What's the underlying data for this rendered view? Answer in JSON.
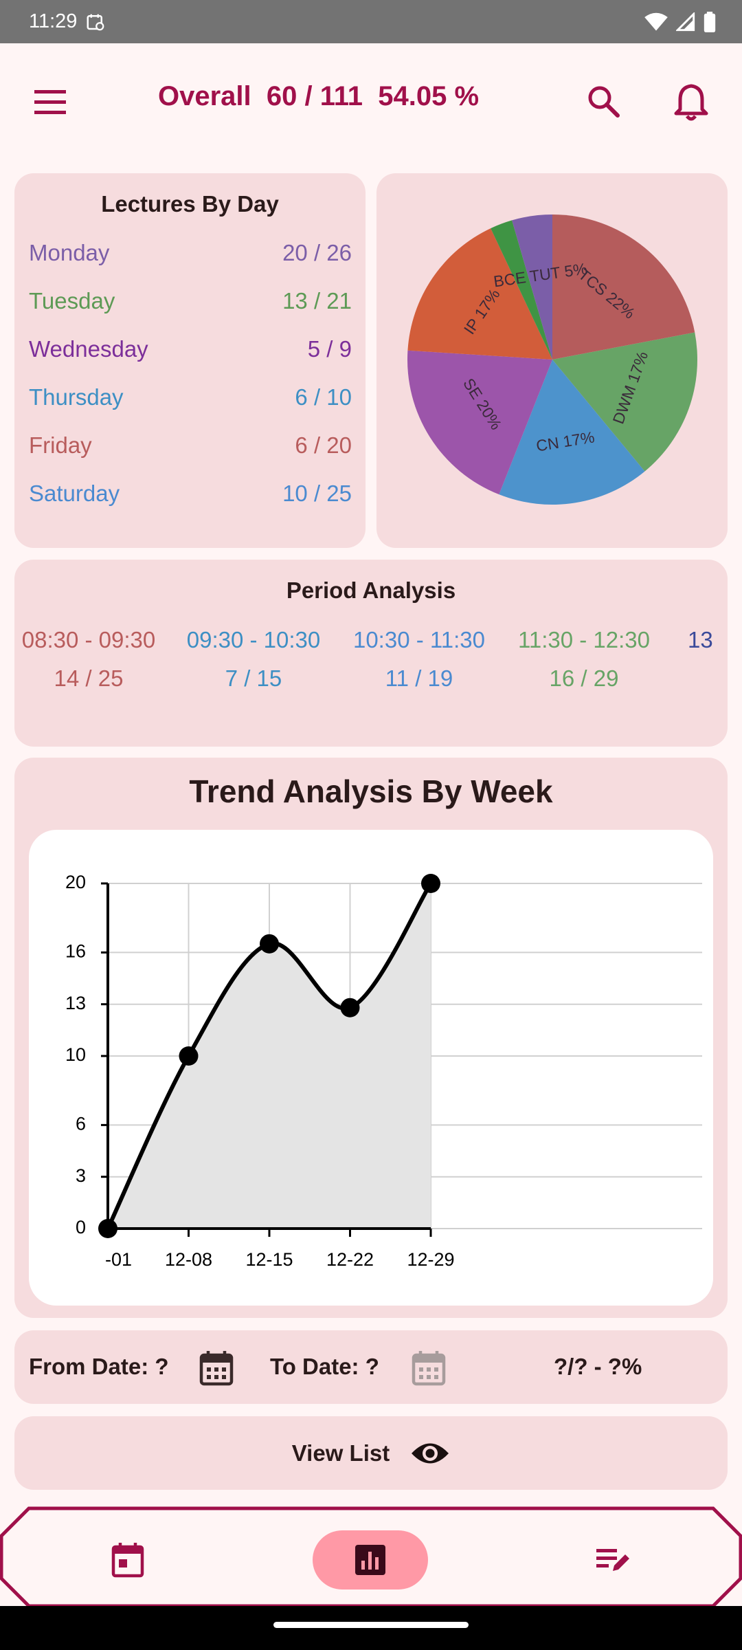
{
  "status_bar": {
    "time": "11:29"
  },
  "header": {
    "title": "Overall  60 / 111  54.05 %"
  },
  "lectures_by_day": {
    "title": "Lectures By Day",
    "days": [
      {
        "name": "Monday",
        "count": "20 / 26",
        "color": "#7b5ea8"
      },
      {
        "name": "Tuesday",
        "count": "13 / 21",
        "color": "#5d9a55"
      },
      {
        "name": "Wednesday",
        "count": "5 / 9",
        "color": "#7c2f9a"
      },
      {
        "name": "Thursday",
        "count": "6 / 10",
        "color": "#3d8fc4"
      },
      {
        "name": "Friday",
        "count": "6 / 20",
        "color": "#b85c5c"
      },
      {
        "name": "Saturday",
        "count": "10 / 25",
        "color": "#4a8ad0"
      }
    ]
  },
  "pie_chart": {
    "slices": [
      {
        "label": "TCS 22%",
        "value": 22,
        "color": "#b55c5c"
      },
      {
        "label": "DWM 17%",
        "value": 17,
        "color": "#67a466"
      },
      {
        "label": "CN 17%",
        "value": 17,
        "color": "#4d93cc"
      },
      {
        "label": "SE 20%",
        "value": 20,
        "color": "#9c55aa"
      },
      {
        "label": "IP 17%",
        "value": 17,
        "color": "#d25d3a"
      },
      {
        "label": "",
        "value": 2.5,
        "color": "#3f9444"
      },
      {
        "label": "BCE TUT 5%",
        "value": 4.5,
        "color": "#7b5ea8"
      }
    ]
  },
  "period_analysis": {
    "title": "Period Analysis",
    "periods": [
      {
        "time": "08:30 - 09:30",
        "count": "14 / 25",
        "color": "#b85c5c"
      },
      {
        "time": "09:30 - 10:30",
        "count": "7 / 15",
        "color": "#3d8fc4"
      },
      {
        "time": "10:30 - 11:30",
        "count": "11 / 19",
        "color": "#4a8ad0"
      },
      {
        "time": "11:30 - 12:30",
        "count": "16 / 29",
        "color": "#67a466"
      },
      {
        "time": "13",
        "count": "",
        "color": "#3a4a9a"
      }
    ]
  },
  "trend": {
    "title": "Trend Analysis By Week"
  },
  "chart_data": {
    "type": "area",
    "title": "Trend Analysis By Week",
    "categories": [
      "-01",
      "12-08",
      "12-15",
      "12-22",
      "12-29"
    ],
    "values": [
      0,
      10,
      16.5,
      12.8,
      20
    ],
    "yticks": [
      0,
      3,
      6,
      10,
      13,
      16,
      20
    ],
    "ylim": [
      0,
      20
    ],
    "xlabel": "",
    "ylabel": ""
  },
  "date_filter": {
    "from_label": "From Date: ?",
    "to_label": "To Date: ?",
    "result": "?/? - ?%"
  },
  "view_list": {
    "label": "View List"
  },
  "colors": {
    "primary": "#a0104a",
    "card": "#f6dcde",
    "pill": "#ff99a6"
  }
}
